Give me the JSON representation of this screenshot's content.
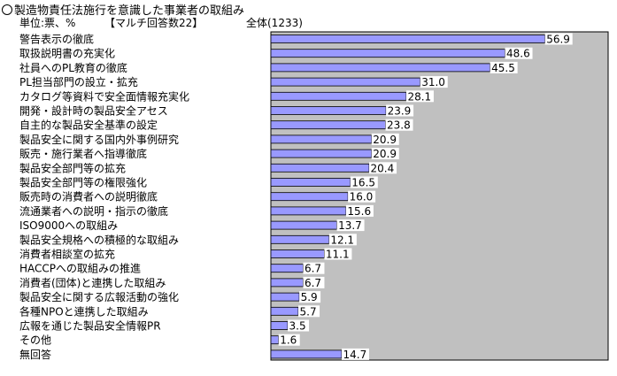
{
  "header": {
    "title": "製造物責任法施行を意識した事業者の取組み",
    "unit": "単位:票、%",
    "multi_answer": "【マルチ回答数22】",
    "total": "全体(1233)"
  },
  "colors": {
    "plot_bg": "#c0c0c0",
    "bar": "#9999ff",
    "bar_border": "#000000",
    "label_bg": "#ffffff"
  },
  "chart_data": {
    "type": "bar",
    "orientation": "horizontal",
    "title": "製造物責任法施行を意識した事業者の取組み",
    "xlim": [
      0,
      70
    ],
    "grid": false,
    "categories": [
      "警告表示の徹底",
      "取扱説明書の充実化",
      "社員へのPL教育の徹底",
      "PL担当部門の設立・拡充",
      "カタログ等資料で安全面情報充実化",
      "開発・設計時の製品安全アセス",
      "自主的な製品安全基準の設定",
      "製品安全に関する国内外事例研究",
      "販売・施行業者へ指導徹底",
      "製品安全部門等の拡充",
      "製品安全部門等の権限強化",
      "販売時の消費者への説明徹底",
      "流通業者への説明・指示の徹底",
      "ISO9000への取組み",
      "製品安全規格への積極的な取組み",
      "消費者相談室の拡充",
      "HACCPへの取組みの推進",
      "消費者(団体)と連携した取組み",
      "製品安全に関する広報活動の強化",
      "各種NPOと連携した取組み",
      "広報を通じた製品安全情報PR",
      "その他",
      "無回答"
    ],
    "values": [
      56.9,
      48.6,
      45.5,
      31.0,
      28.1,
      23.9,
      23.8,
      20.9,
      20.9,
      20.4,
      16.5,
      16.0,
      15.6,
      13.7,
      12.1,
      11.1,
      6.7,
      6.7,
      5.9,
      5.7,
      3.5,
      1.6,
      14.7
    ],
    "value_labels": [
      "56.9",
      "48.6",
      "45.5",
      "31.0",
      "28.1",
      "23.9",
      "23.8",
      "20.9",
      "20.9",
      "20.4",
      "16.5",
      "16.0",
      "15.6",
      "13.7",
      "12.1",
      "11.1",
      "6.7",
      "6.7",
      "5.9",
      "5.7",
      "3.5",
      "1.6",
      "14.7"
    ]
  }
}
